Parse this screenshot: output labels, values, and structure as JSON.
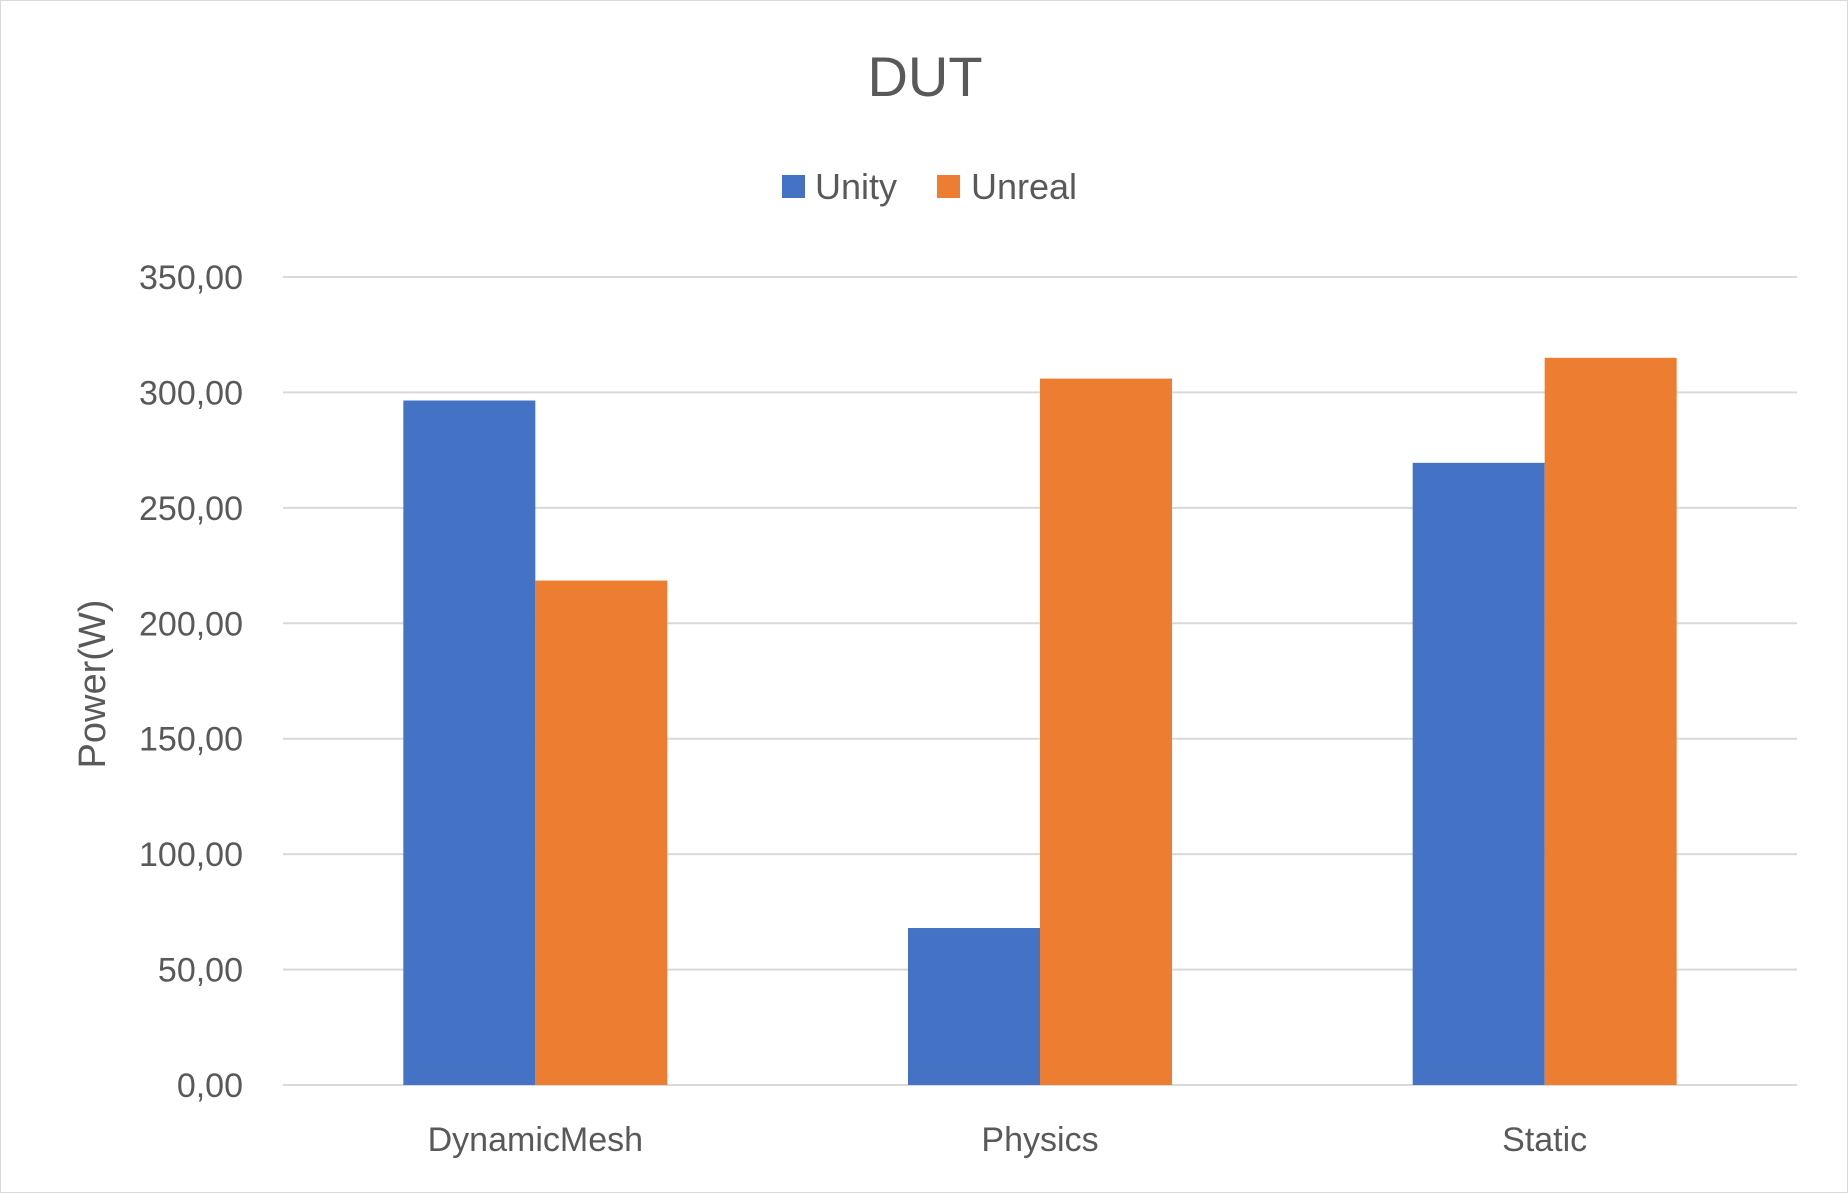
{
  "chart_data": {
    "type": "bar",
    "title": "DUT",
    "ylabel": "Power(W)",
    "xlabel": "",
    "categories": [
      "DynamicMesh",
      "Physics",
      "Static"
    ],
    "series": [
      {
        "name": "Unity",
        "color": "#4472C4",
        "values": [
          296.5,
          68.0,
          269.5
        ]
      },
      {
        "name": "Unreal",
        "color": "#ED7D31",
        "values": [
          218.5,
          306.0,
          315.0
        ]
      }
    ],
    "ylim": [
      0,
      350
    ],
    "yticks": [
      0,
      50,
      100,
      150,
      200,
      250,
      300,
      350
    ],
    "ytick_labels": [
      "0,00",
      "50,00",
      "100,00",
      "150,00",
      "200,00",
      "250,00",
      "300,00",
      "350,00"
    ],
    "grid": true,
    "legend_position": "top-center"
  }
}
